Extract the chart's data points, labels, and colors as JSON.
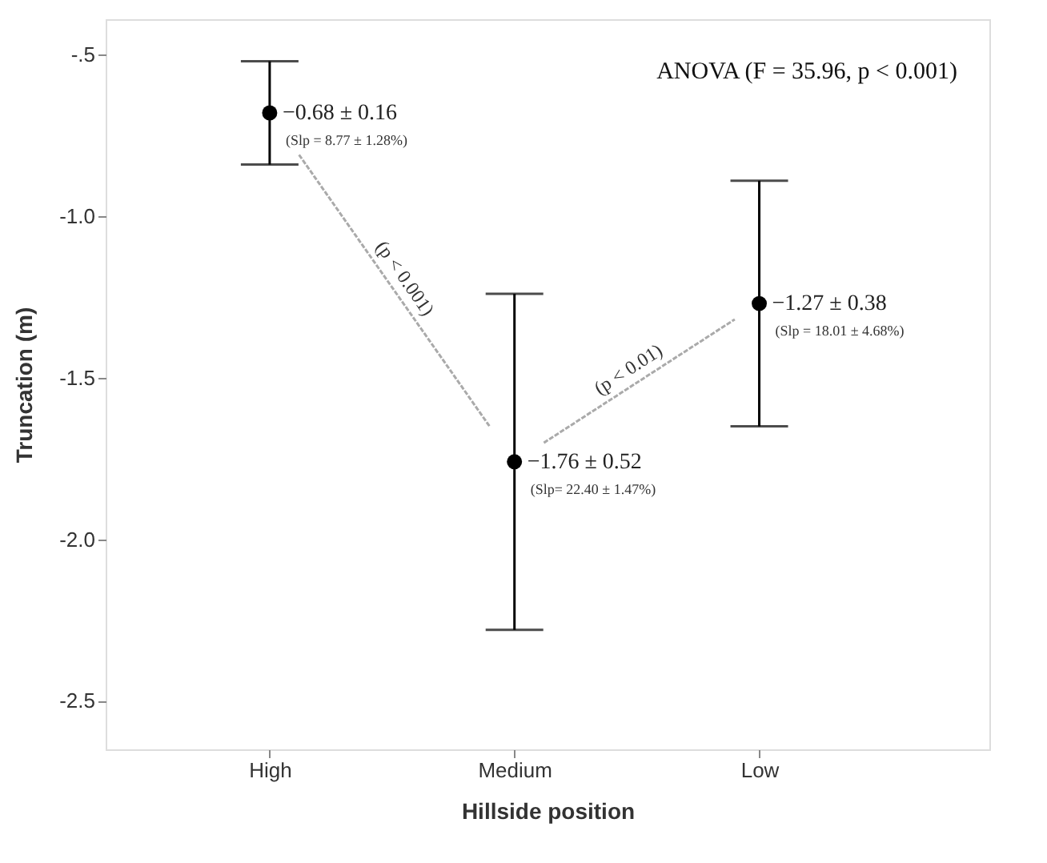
{
  "chart_data": {
    "type": "scatter",
    "categories": [
      "High",
      "Medium",
      "Low"
    ],
    "values": [
      -0.68,
      -1.76,
      -1.27
    ],
    "errors": [
      0.16,
      0.52,
      0.38
    ],
    "color": "#000000",
    "marker": "circle",
    "value_labels": [
      "−0.68 ± 0.16",
      "−1.76 ± 0.52",
      "−1.27 ± 0.38"
    ],
    "xlabel": "Hillside position",
    "ylabel": "Truncation (m)",
    "ylim": [
      -2.65,
      -0.39
    ],
    "yticks": [
      {
        "value": -0.5,
        "label": "-.5"
      },
      {
        "value": -1.0,
        "label": "-1.0"
      },
      -1.5,
      {
        "value": -2.0,
        "label": "-2.0"
      },
      -2.5
    ],
    "grid": false,
    "annotations": [
      "ANOVA (F = 35.96, p < 0.001)",
      {
        "text": "(Slp = 8.77 ± 1.28%)",
        "x": "High",
        "y": -0.68
      },
      {
        "text": "(Slp= 22.40 ± 1.47%)",
        "x": "Medium",
        "y": -1.76
      },
      {
        "text": "(Slp = 18.01 ± 4.68%)",
        "x": "Low",
        "y": -1.27
      },
      "(p < 0.001)",
      "(p < 0.01)"
    ]
  }
}
